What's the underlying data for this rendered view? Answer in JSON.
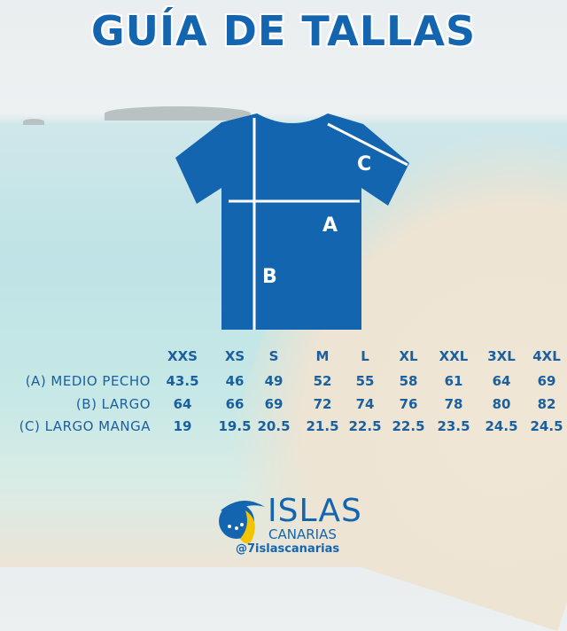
{
  "title": "GUÍA DE TALLAS",
  "diagram_labels": {
    "a": "A",
    "b": "B",
    "c": "C"
  },
  "sizes": [
    "XXS",
    "XS",
    "S",
    "M",
    "L",
    "XL",
    "XXL",
    "3XL",
    "4XL"
  ],
  "rows": [
    {
      "label": "(A) MEDIO PECHO",
      "values": [
        "43.5",
        "46",
        "49",
        "52",
        "55",
        "58",
        "61",
        "64",
        "69"
      ]
    },
    {
      "label": "(B) LARGO",
      "values": [
        "64",
        "66",
        "69",
        "72",
        "74",
        "76",
        "78",
        "80",
        "82"
      ]
    },
    {
      "label": "(C) LARGO MANGA",
      "values": [
        "19",
        "19.5",
        "20.5",
        "21.5",
        "22.5",
        "22.5",
        "23.5",
        "24.5",
        "24.5"
      ]
    }
  ],
  "brand": {
    "name_line1": "ISLAS",
    "name_line2": "CANARIAS",
    "handle": "@7islascanarias"
  },
  "colors": {
    "primary": "#1465b0",
    "accent": "#f5c400"
  }
}
